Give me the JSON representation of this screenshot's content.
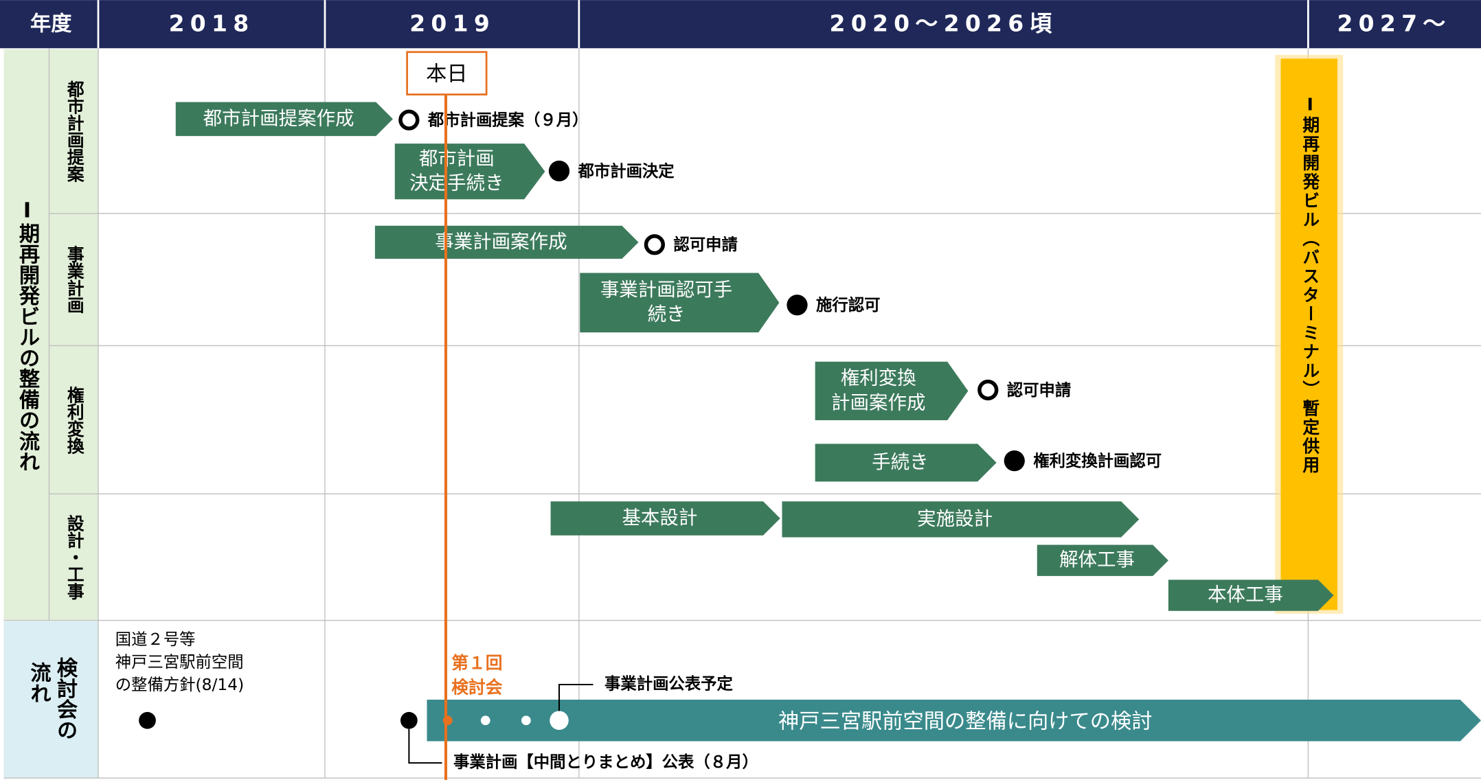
{
  "header": {
    "corner": "年度",
    "years": [
      "2018",
      "2019",
      "2020〜2026頃",
      "2027〜"
    ]
  },
  "groups": {
    "main": "Ⅰ期再開発ビルの整備の流れ",
    "rows": [
      "都市計画提案",
      "事業計画",
      "権利変換",
      "設計・工事"
    ],
    "council": [
      "検討会の",
      "流れ"
    ]
  },
  "today": "本日",
  "tasks": [
    [
      "都市計画提案作成"
    ],
    [
      "都市計画",
      "決定手続き"
    ],
    [
      "事業計画案作成"
    ],
    [
      "事業計画認可手",
      "続き"
    ],
    [
      "権利変換",
      "計画案作成"
    ],
    [
      "手続き"
    ],
    [
      "基本設計"
    ],
    [
      "実施設計"
    ],
    [
      "解体工事"
    ],
    [
      "本体工事"
    ]
  ],
  "milestones": [
    "都市計画提案（９月）",
    "都市計画決定",
    "認可申請",
    "施行認可",
    "認可申請",
    "権利変換計画認可"
  ],
  "building": "Ⅰ期再開発ビル（バスターミナル）暫定供用",
  "council": {
    "note": [
      "国道２号等",
      "神戸三宮駅前空間",
      "の整備方針(8/14)"
    ],
    "first": [
      "第１回",
      "検討会"
    ],
    "bar": "神戸三宮駅前空間の整備に向けての検討",
    "plan": "事業計画公表予定",
    "interim": "事業計画【中間とりまとめ】公表（８月）"
  }
}
